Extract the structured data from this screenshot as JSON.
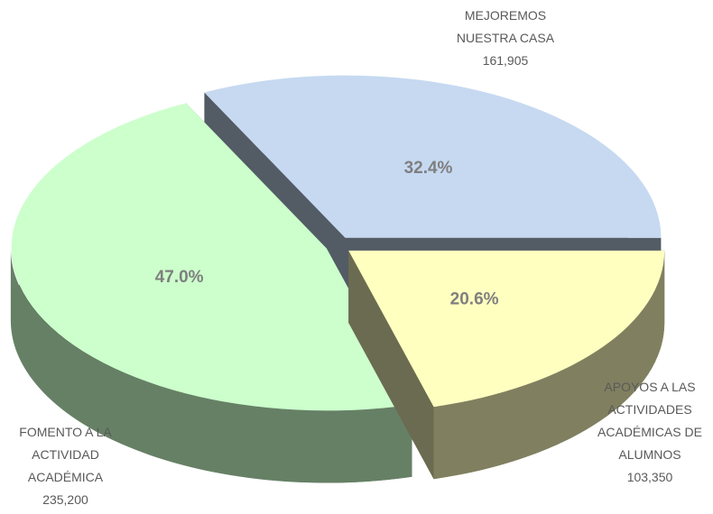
{
  "chart_data": {
    "type": "pie",
    "categories": [
      "MEJOREMOS NUESTRA CASA",
      "APOYOS A LAS ACTIVIDADES ACADÉMICAS DE ALUMNOS",
      "FOMENTO A LA ACTIVIDAD ACADÉMICA"
    ],
    "values": [
      161905,
      103350,
      235200
    ],
    "value_labels": [
      "161,905",
      "103,350",
      "235,200"
    ],
    "percent_labels": [
      "32.4%",
      "20.6%",
      "47.0%"
    ],
    "colors": [
      "#c6d9f1",
      "#ffffc0",
      "#ccffcc"
    ]
  }
}
